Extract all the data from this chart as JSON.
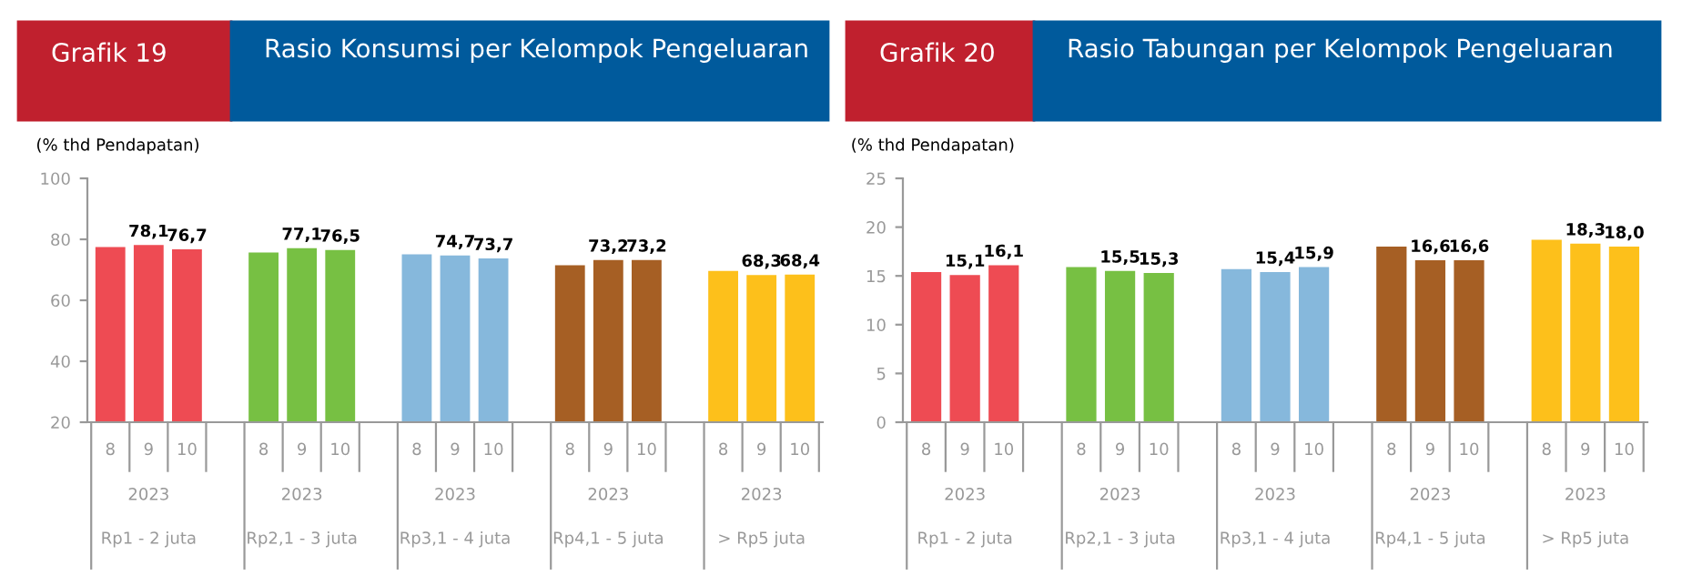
{
  "chart_data": [
    {
      "type": "bar",
      "title": "Grafik 19",
      "subtitle": "Rasio Konsumsi per Kelompok Pengeluaran",
      "ylabel": "(% thd Pendapatan)",
      "categories": [
        "8",
        "9",
        "10",
        "8",
        "9",
        "10",
        "8",
        "9",
        "10",
        "8",
        "9",
        "10",
        "8",
        "9",
        "10"
      ],
      "values": [
        77.5,
        78.1,
        76.7,
        75.7,
        77.1,
        76.5,
        75.1,
        74.7,
        73.7,
        71.5,
        73.2,
        73.2,
        69.6,
        68.3,
        68.4
      ],
      "value_labels": [
        null,
        "78,1",
        "76,7",
        null,
        "77,1",
        "76,5",
        null,
        "74,7",
        "73,7",
        null,
        "73,2",
        "73,2",
        null,
        "68,3",
        "68,4"
      ],
      "colors": [
        "#ee4b53",
        "#ee4b53",
        "#ee4b53",
        "#77c043",
        "#77c043",
        "#77c043",
        "#86b8dc",
        "#86b8dc",
        "#86b8dc",
        "#a65f24",
        "#a65f24",
        "#a65f24",
        "#fdc01b",
        "#fdc01b",
        "#fdc01b"
      ],
      "annotations": [
        "2023",
        "Rp1 - 2 juta",
        "2023",
        "Rp2,1 - 3 juta",
        "2023",
        "Rp3,1 - 4 juta",
        "2023",
        "Rp4,1 - 5 juta",
        "2023",
        "> Rp5 juta"
      ],
      "ylim": [
        20,
        100
      ],
      "yticks": [
        20,
        40,
        60,
        80,
        100
      ],
      "grid": false
    },
    {
      "type": "bar",
      "title": "Grafik 20",
      "subtitle": "Rasio Tabungan per Kelompok Pengeluaran",
      "ylabel": "(% thd Pendapatan)",
      "categories": [
        "8",
        "9",
        "10",
        "8",
        "9",
        "10",
        "8",
        "9",
        "10",
        "8",
        "9",
        "10",
        "8",
        "9",
        "10"
      ],
      "values": [
        15.4,
        15.1,
        16.1,
        15.9,
        15.5,
        15.3,
        15.7,
        15.4,
        15.9,
        18.0,
        16.6,
        16.6,
        18.7,
        18.3,
        18.0
      ],
      "value_labels": [
        null,
        "15,1",
        "16,1",
        null,
        "15,5",
        "15,3",
        null,
        "15,4",
        "15,9",
        null,
        "16,6",
        "16,6",
        null,
        "18,3",
        "18,0"
      ],
      "colors": [
        "#ee4b53",
        "#ee4b53",
        "#ee4b53",
        "#77c043",
        "#77c043",
        "#77c043",
        "#86b8dc",
        "#86b8dc",
        "#86b8dc",
        "#a65f24",
        "#a65f24",
        "#a65f24",
        "#fdc01b",
        "#fdc01b",
        "#fdc01b"
      ],
      "annotations": [
        "2023",
        "Rp1 - 2 juta",
        "2023",
        "Rp2,1 - 3 juta",
        "2023",
        "Rp3,1 - 4 juta",
        "2023",
        "Rp4,1 - 5 juta",
        "2023",
        "> Rp5 juta"
      ],
      "ylim": [
        0,
        25
      ],
      "yticks": [
        0,
        5,
        10,
        15,
        20,
        25
      ],
      "grid": false
    }
  ]
}
